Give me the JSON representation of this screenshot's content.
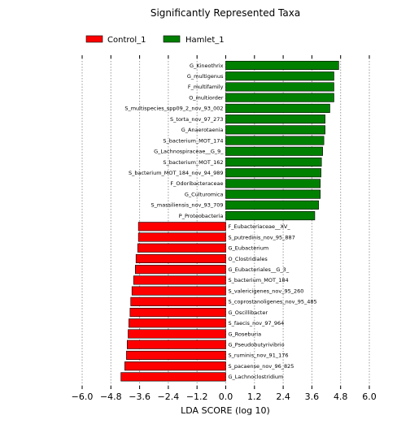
{
  "chart_data": {
    "type": "bar",
    "orientation": "horizontal",
    "title": "Significantly Represented Taxa",
    "xlabel": "LDA SCORE (log 10)",
    "ylabel": "",
    "xlim": [
      -6.0,
      6.0
    ],
    "xticks": [
      "−6.0",
      "−4.8",
      "−3.6",
      "−2.4",
      "−1.2",
      "0.0",
      "1.2",
      "2.4",
      "3.6",
      "4.8",
      "6.0"
    ],
    "xtick_values": [
      -6.0,
      -4.8,
      -3.6,
      -2.4,
      -1.2,
      0.0,
      1.2,
      2.4,
      3.6,
      4.8,
      6.0
    ],
    "grid": "vertical dotted",
    "legend_position": "top-left",
    "series": [
      {
        "name": "Control_1",
        "color": "#ff0000"
      },
      {
        "name": "Hamlet_1",
        "color": "#008000"
      }
    ],
    "bars": [
      {
        "label": "G_Kineothrix",
        "value": 4.72,
        "group": "Hamlet_1"
      },
      {
        "label": "G_multigenus",
        "value": 4.52,
        "group": "Hamlet_1"
      },
      {
        "label": "F_multifamily",
        "value": 4.52,
        "group": "Hamlet_1"
      },
      {
        "label": "O_multiorder",
        "value": 4.52,
        "group": "Hamlet_1"
      },
      {
        "label": "S_multispecies_spp09_2_nov_93_002",
        "value": 4.35,
        "group": "Hamlet_1"
      },
      {
        "label": "S_torta_nov_97_273",
        "value": 4.15,
        "group": "Hamlet_1"
      },
      {
        "label": "G_Anaerotaenia",
        "value": 4.15,
        "group": "Hamlet_1"
      },
      {
        "label": "S_bacterium_MOT_174",
        "value": 4.1,
        "group": "Hamlet_1"
      },
      {
        "label": "G_Lachnospiraceae__G_9_",
        "value": 4.05,
        "group": "Hamlet_1"
      },
      {
        "label": "S_bacterium_MOT_162",
        "value": 4.0,
        "group": "Hamlet_1"
      },
      {
        "label": "S_bacterium_MOT_184_nov_94_989",
        "value": 3.98,
        "group": "Hamlet_1"
      },
      {
        "label": "F_Odoribacteraceae",
        "value": 3.95,
        "group": "Hamlet_1"
      },
      {
        "label": "G_Culturomica",
        "value": 3.95,
        "group": "Hamlet_1"
      },
      {
        "label": "S_massiliensis_nov_93_709",
        "value": 3.88,
        "group": "Hamlet_1"
      },
      {
        "label": "P_Proteobacteria",
        "value": 3.72,
        "group": "Hamlet_1"
      },
      {
        "label": "F_Eubacteriaceae__XV_",
        "value": -3.65,
        "group": "Control_1"
      },
      {
        "label": "S_putredinis_nov_95_887",
        "value": -3.65,
        "group": "Control_1"
      },
      {
        "label": "G_Eubacterium",
        "value": -3.68,
        "group": "Control_1"
      },
      {
        "label": "O_Clostridiales",
        "value": -3.75,
        "group": "Control_1"
      },
      {
        "label": "G_Eubacteriales__G_3_",
        "value": -3.78,
        "group": "Control_1"
      },
      {
        "label": "S_bacterium_MOT_184",
        "value": -3.85,
        "group": "Control_1"
      },
      {
        "label": "S_valericigenes_nov_95_260",
        "value": -3.92,
        "group": "Control_1"
      },
      {
        "label": "S_coprostanoligenes_nov_95_485",
        "value": -3.97,
        "group": "Control_1"
      },
      {
        "label": "G_Oscillibacter",
        "value": -4.0,
        "group": "Control_1"
      },
      {
        "label": "S_faecis_nov_97_964",
        "value": -4.05,
        "group": "Control_1"
      },
      {
        "label": "G_Roseburia",
        "value": -4.08,
        "group": "Control_1"
      },
      {
        "label": "G_Pseudobutyrivibrio",
        "value": -4.12,
        "group": "Control_1"
      },
      {
        "label": "S_ruminis_nov_91_176",
        "value": -4.15,
        "group": "Control_1"
      },
      {
        "label": "S_pacaense_nov_96_825",
        "value": -4.22,
        "group": "Control_1"
      },
      {
        "label": "G_Lachnoclostridium",
        "value": -4.38,
        "group": "Control_1"
      }
    ]
  }
}
